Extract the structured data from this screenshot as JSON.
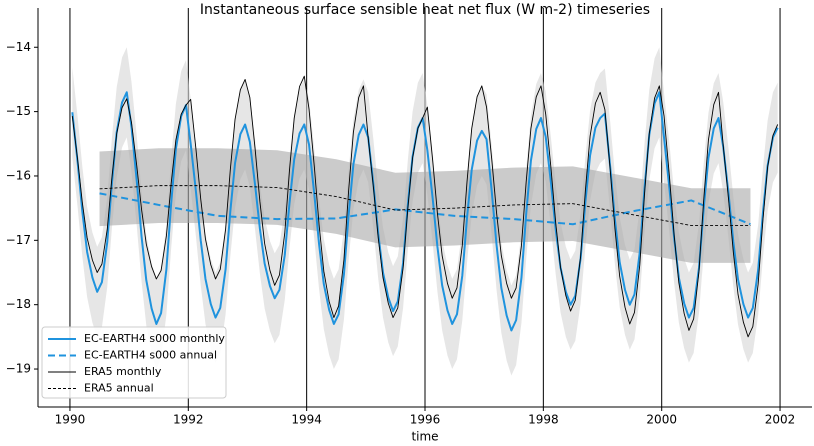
{
  "chart_data": {
    "type": "line",
    "title": "Instantaneous surface sensible heat net flux (W m-2) timeseries",
    "x_label": "time",
    "xlim": [
      1989.46,
      2002.54
    ],
    "ylim": [
      -19.59,
      -13.39
    ],
    "xticks": [
      1990,
      1992,
      1994,
      1996,
      1998,
      2000,
      2002
    ],
    "yticks": [
      {
        "value": -19,
        "label": "−19"
      },
      {
        "value": -18,
        "label": "−18"
      },
      {
        "value": -17,
        "label": "−17"
      },
      {
        "value": -16,
        "label": "−16"
      },
      {
        "value": -15,
        "label": "−15"
      },
      {
        "value": -14,
        "label": "−14"
      }
    ],
    "grid": "x",
    "grid_color": "#000000",
    "legend": "lower left",
    "x": [
      1990.04,
      1990.13,
      1990.21,
      1990.29,
      1990.38,
      1990.46,
      1990.54,
      1990.63,
      1990.71,
      1990.79,
      1990.88,
      1990.96,
      1991.04,
      1991.13,
      1991.21,
      1991.29,
      1991.38,
      1991.46,
      1991.54,
      1991.63,
      1991.71,
      1991.79,
      1991.88,
      1991.96,
      1992.04,
      1992.13,
      1992.21,
      1992.29,
      1992.38,
      1992.46,
      1992.54,
      1992.63,
      1992.71,
      1992.79,
      1992.88,
      1992.96,
      1993.04,
      1993.13,
      1993.21,
      1993.29,
      1993.38,
      1993.46,
      1993.54,
      1993.63,
      1993.71,
      1993.79,
      1993.88,
      1993.96,
      1994.04,
      1994.13,
      1994.21,
      1994.29,
      1994.38,
      1994.46,
      1994.54,
      1994.63,
      1994.71,
      1994.79,
      1994.88,
      1994.96,
      1995.04,
      1995.13,
      1995.21,
      1995.29,
      1995.38,
      1995.46,
      1995.54,
      1995.63,
      1995.71,
      1995.79,
      1995.88,
      1995.96,
      1996.04,
      1996.13,
      1996.21,
      1996.29,
      1996.38,
      1996.46,
      1996.54,
      1996.63,
      1996.71,
      1996.79,
      1996.88,
      1996.96,
      1997.04,
      1997.13,
      1997.21,
      1997.29,
      1997.38,
      1997.46,
      1997.54,
      1997.63,
      1997.71,
      1997.79,
      1997.88,
      1997.96,
      1998.04,
      1998.13,
      1998.21,
      1998.29,
      1998.38,
      1998.46,
      1998.54,
      1998.63,
      1998.71,
      1998.79,
      1998.88,
      1998.96,
      1999.04,
      1999.13,
      1999.21,
      1999.29,
      1999.38,
      1999.46,
      1999.54,
      1999.63,
      1999.71,
      1999.79,
      1999.88,
      1999.96,
      2000.04,
      2000.13,
      2000.21,
      2000.29,
      2000.38,
      2000.46,
      2000.54,
      2000.63,
      2000.71,
      2000.79,
      2000.88,
      2000.96,
      2001.04,
      2001.13,
      2001.21,
      2001.29,
      2001.38,
      2001.46,
      2001.54,
      2001.63,
      2001.71,
      2001.79,
      2001.88,
      2001.96
    ],
    "series": [
      {
        "name": "EC-EARTH4 s000 monthly",
        "color": "#1f93de",
        "width": 2,
        "spread": 0.7,
        "band_color": "#d6d6d6",
        "values": [
          -15.01,
          -15.79,
          -16.56,
          -17.18,
          -17.58,
          -17.8,
          -17.65,
          -17.03,
          -16.1,
          -15.32,
          -14.86,
          -14.7,
          -15.24,
          -16.09,
          -16.94,
          -17.62,
          -18.06,
          -18.3,
          -18.13,
          -17.45,
          -16.43,
          -15.58,
          -15.07,
          -14.9,
          -15.5,
          -16.25,
          -17.0,
          -17.6,
          -17.99,
          -18.2,
          -18.05,
          -17.45,
          -16.55,
          -15.8,
          -15.35,
          -15.2,
          -15.47,
          -16.15,
          -16.82,
          -17.36,
          -17.71,
          -17.9,
          -17.77,
          -17.23,
          -16.42,
          -15.74,
          -15.34,
          -15.2,
          -15.51,
          -16.29,
          -17.06,
          -17.68,
          -18.08,
          -18.3,
          -18.15,
          -17.53,
          -16.6,
          -15.82,
          -15.36,
          -15.2,
          -15.4,
          -16.15,
          -16.9,
          -17.5,
          -17.89,
          -18.1,
          -17.95,
          -17.35,
          -16.45,
          -15.7,
          -15.25,
          -15.1,
          -15.6,
          -16.35,
          -17.1,
          -17.7,
          -18.09,
          -18.3,
          -18.15,
          -17.55,
          -16.65,
          -15.9,
          -15.45,
          -15.3,
          -15.43,
          -16.26,
          -17.08,
          -17.74,
          -18.17,
          -18.4,
          -18.24,
          -17.58,
          -16.59,
          -15.76,
          -15.27,
          -15.1,
          -15.39,
          -16.12,
          -16.84,
          -17.42,
          -17.8,
          -18.0,
          -17.86,
          -17.28,
          -16.41,
          -15.68,
          -15.25,
          -15.1,
          -15.03,
          -15.86,
          -16.68,
          -17.34,
          -17.77,
          -18.0,
          -17.84,
          -17.18,
          -16.19,
          -15.36,
          -14.87,
          -14.7,
          -15.41,
          -16.19,
          -16.96,
          -17.58,
          -17.98,
          -18.2,
          -18.05,
          -17.43,
          -16.5,
          -15.72,
          -15.26,
          -15.1,
          -15.55,
          -16.28,
          -17.02,
          -17.61,
          -17.99,
          -18.2,
          -18.05,
          -17.46,
          -16.58,
          -15.84,
          -15.4,
          -15.25
        ]
      },
      {
        "name": "EC-EARTH4 s000 annual",
        "color": "#1f93de",
        "width": 2,
        "dash": "7,4",
        "x": [
          1990.5,
          1991.5,
          1992.5,
          1993.5,
          1994.5,
          1995.5,
          1996.5,
          1997.5,
          1998.5,
          1999.5,
          2000.5,
          2001.5
        ],
        "values": [
          -16.27,
          -16.45,
          -16.62,
          -16.67,
          -16.66,
          -16.52,
          -16.62,
          -16.67,
          -16.75,
          -16.55,
          -16.38,
          -16.75
        ]
      },
      {
        "name": "ERA5 monthly",
        "color": "#000000",
        "width": 0.9,
        "values": [
          -15.07,
          -15.75,
          -16.42,
          -16.96,
          -17.31,
          -17.5,
          -17.37,
          -16.83,
          -16.02,
          -15.34,
          -14.94,
          -14.8,
          -15.17,
          -15.85,
          -16.52,
          -17.06,
          -17.41,
          -17.6,
          -17.47,
          -16.93,
          -16.12,
          -15.44,
          -15.04,
          -14.9,
          -14.81,
          -15.59,
          -16.36,
          -16.98,
          -17.38,
          -17.6,
          -17.45,
          -16.83,
          -15.9,
          -15.12,
          -14.66,
          -14.5,
          -14.78,
          -15.59,
          -16.4,
          -17.05,
          -17.47,
          -17.7,
          -17.54,
          -16.89,
          -15.91,
          -15.1,
          -14.61,
          -14.45,
          -14.96,
          -15.86,
          -16.76,
          -17.48,
          -17.95,
          -18.2,
          -18.02,
          -17.3,
          -16.22,
          -15.32,
          -14.78,
          -14.6,
          -15.41,
          -16.19,
          -16.96,
          -17.58,
          -17.98,
          -18.2,
          -18.05,
          -17.43,
          -16.5,
          -15.72,
          -15.26,
          -15.1,
          -14.93,
          -15.76,
          -16.58,
          -17.24,
          -17.67,
          -17.9,
          -17.74,
          -17.08,
          -16.09,
          -15.26,
          -14.77,
          -14.6,
          -14.93,
          -15.76,
          -16.58,
          -17.24,
          -17.67,
          -17.9,
          -17.74,
          -17.08,
          -16.09,
          -15.26,
          -14.77,
          -14.6,
          -15.04,
          -15.89,
          -16.74,
          -17.42,
          -17.86,
          -18.1,
          -17.93,
          -17.25,
          -16.23,
          -15.38,
          -14.87,
          -14.7,
          -14.97,
          -15.9,
          -16.82,
          -17.56,
          -18.04,
          -18.3,
          -18.12,
          -17.38,
          -16.27,
          -15.34,
          -14.79,
          -14.6,
          -15.07,
          -16.0,
          -16.92,
          -17.66,
          -18.14,
          -18.4,
          -18.22,
          -17.48,
          -16.37,
          -15.44,
          -14.89,
          -14.7,
          -15.53,
          -16.36,
          -17.18,
          -17.84,
          -18.27,
          -18.5,
          -18.34,
          -17.68,
          -16.69,
          -15.86,
          -15.37,
          -15.2
        ]
      },
      {
        "name": "ERA5 annual",
        "color": "#000000",
        "width": 0.9,
        "dash": "3,2",
        "spread": 0.58,
        "band_color": "#a8a8a8",
        "x": [
          1990.5,
          1991.5,
          1992.5,
          1993.5,
          1994.5,
          1995.5,
          1996.5,
          1997.5,
          1998.5,
          1999.5,
          2000.5,
          2001.5
        ],
        "values": [
          -16.2,
          -16.15,
          -16.15,
          -16.18,
          -16.32,
          -16.53,
          -16.5,
          -16.45,
          -16.43,
          -16.6,
          -16.77,
          -16.77
        ]
      }
    ]
  }
}
